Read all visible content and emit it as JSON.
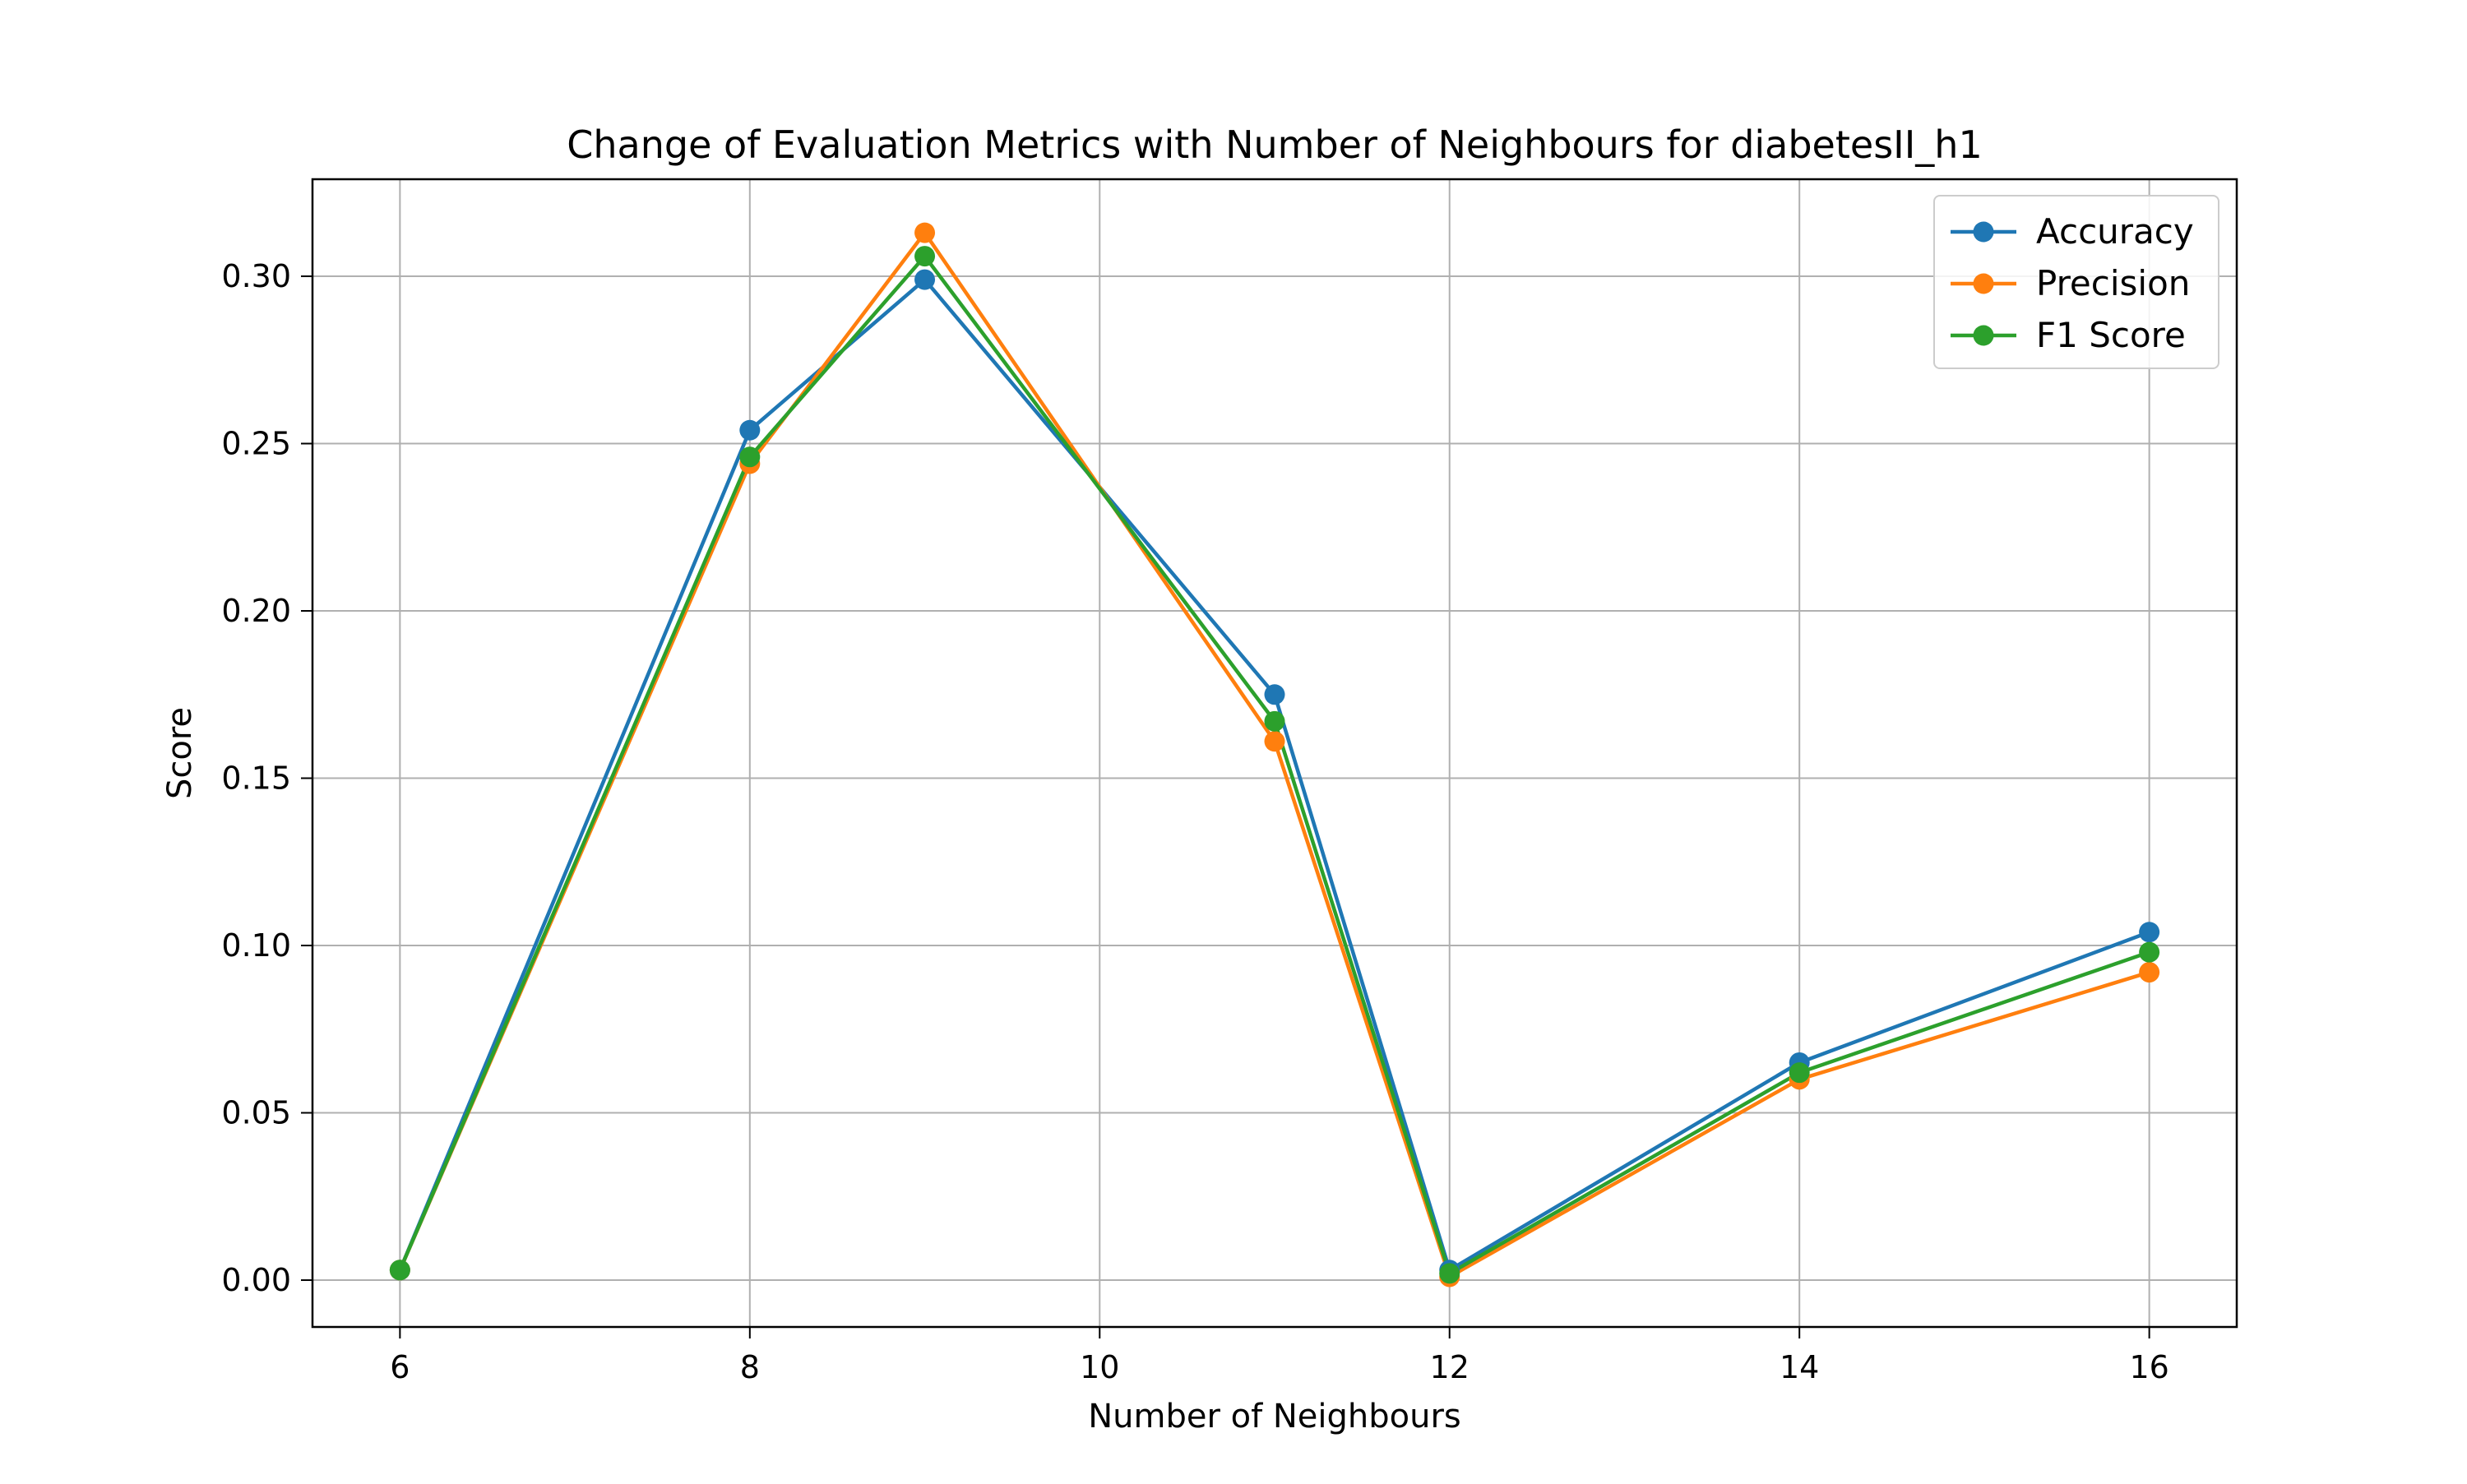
{
  "chart_data": {
    "type": "line",
    "title": "Change of Evaluation Metrics with Number of Neighbours for diabetesII_h1",
    "xlabel": "Number of Neighbours",
    "ylabel": "Score",
    "xlim": [
      5.5,
      16.5
    ],
    "ylim": [
      -0.014,
      0.329
    ],
    "xticks": [
      6,
      8,
      10,
      12,
      14,
      16
    ],
    "xtick_labels": [
      "6",
      "8",
      "10",
      "12",
      "14",
      "16"
    ],
    "yticks": [
      0.0,
      0.05,
      0.1,
      0.15,
      0.2,
      0.25,
      0.3
    ],
    "ytick_labels": [
      "0.00",
      "0.05",
      "0.10",
      "0.15",
      "0.20",
      "0.25",
      "0.30"
    ],
    "grid": true,
    "legend_position": "top-right",
    "x": [
      6,
      8,
      9,
      11,
      12,
      14,
      16
    ],
    "series": [
      {
        "name": "Accuracy",
        "color": "#1f77b4",
        "values": [
          0.003,
          0.254,
          0.299,
          0.175,
          0.003,
          0.065,
          0.104
        ]
      },
      {
        "name": "Precision",
        "color": "#ff7f0e",
        "values": [
          0.003,
          0.244,
          0.313,
          0.161,
          0.001,
          0.06,
          0.092
        ]
      },
      {
        "name": "F1 Score",
        "color": "#2ca02c",
        "values": [
          0.003,
          0.246,
          0.306,
          0.167,
          0.002,
          0.062,
          0.098
        ]
      }
    ]
  }
}
